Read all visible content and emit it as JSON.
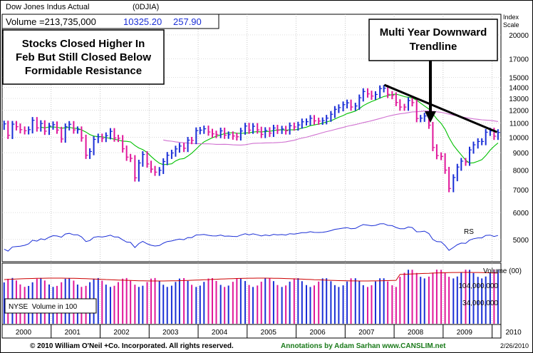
{
  "header": {
    "name_line": "Dow Jones Indus Actual",
    "symbol": "(0DJIA)",
    "volume_text": "Volume =213,735,000",
    "price": "10325.20",
    "change": "257.90"
  },
  "annotations": {
    "left_box": [
      "Stocks Closed Higher In",
      "Feb But Still Closed Below",
      "Formidable Resistance"
    ],
    "right_box": [
      "Multi Year Downward",
      "Trendline"
    ]
  },
  "right_axis": {
    "title_lines": [
      "Index",
      "Scale"
    ],
    "tick_values": [
      20000,
      17000,
      15000,
      14000,
      13000,
      12000,
      11000,
      10000,
      9000,
      8000,
      7000,
      6000,
      5000
    ]
  },
  "rs_label": "RS",
  "volume_panel": {
    "title": "Volume (00)",
    "ticks": [
      "104,000,000",
      "34,000,000"
    ],
    "legend": "NYSE  Volume in 100"
  },
  "x_axis": {
    "years": [
      "2000",
      "2001",
      "2002",
      "2003",
      "2004",
      "2005",
      "2006",
      "2007",
      "2008",
      "2009",
      "2010"
    ]
  },
  "footer": {
    "copyright": "© 2010 William O'Neil +Co. Incorporated. All rights reserved.",
    "annotations_credit": "Annotations by Adam Sarhan www.CANSLIM.net",
    "date": "2/26/2010"
  },
  "colors": {
    "up_bar": "#1a2ed6",
    "down_bar": "#e0179a",
    "ma_short": "#00c000",
    "ma_long": "#d070d0",
    "rs_line": "#1a2ed6",
    "volume_ma": "#cc0000",
    "text_blue": "#1a2ed6",
    "footer_green": "#1a7a1a"
  },
  "chart_data": {
    "type": "bar",
    "title": "Dow Jones Indus Actual (0DJIA)",
    "scale": "log",
    "ylim": [
      4300,
      23000
    ],
    "x_range": [
      2000.0,
      2010.18
    ],
    "monthly_close_x": [
      2000.04,
      2000.12,
      2000.21,
      2000.29,
      2000.37,
      2000.46,
      2000.54,
      2000.62,
      2000.71,
      2000.79,
      2000.87,
      2000.96,
      2001.04,
      2001.12,
      2001.21,
      2001.29,
      2001.37,
      2001.46,
      2001.54,
      2001.62,
      2001.71,
      2001.79,
      2001.87,
      2001.96,
      2002.04,
      2002.12,
      2002.21,
      2002.29,
      2002.37,
      2002.46,
      2002.54,
      2002.62,
      2002.71,
      2002.79,
      2002.87,
      2002.96,
      2003.04,
      2003.12,
      2003.21,
      2003.29,
      2003.37,
      2003.46,
      2003.54,
      2003.62,
      2003.71,
      2003.79,
      2003.87,
      2003.96,
      2004.04,
      2004.12,
      2004.21,
      2004.29,
      2004.37,
      2004.46,
      2004.54,
      2004.62,
      2004.71,
      2004.79,
      2004.87,
      2004.96,
      2005.04,
      2005.12,
      2005.21,
      2005.29,
      2005.37,
      2005.46,
      2005.54,
      2005.62,
      2005.71,
      2005.79,
      2005.87,
      2005.96,
      2006.04,
      2006.12,
      2006.21,
      2006.29,
      2006.37,
      2006.46,
      2006.54,
      2006.62,
      2006.71,
      2006.79,
      2006.87,
      2006.96,
      2007.04,
      2007.12,
      2007.21,
      2007.29,
      2007.37,
      2007.46,
      2007.54,
      2007.62,
      2007.71,
      2007.79,
      2007.87,
      2007.96,
      2008.04,
      2008.12,
      2008.21,
      2008.29,
      2008.37,
      2008.46,
      2008.54,
      2008.62,
      2008.71,
      2008.79,
      2008.87,
      2008.96,
      2009.04,
      2009.12,
      2009.21,
      2009.29,
      2009.37,
      2009.46,
      2009.54,
      2009.62,
      2009.71,
      2009.79,
      2009.87,
      2009.96,
      2010.04,
      2010.12
    ],
    "monthly_close": [
      10941,
      10128,
      10922,
      10734,
      10522,
      10448,
      10522,
      11215,
      10651,
      10971,
      10415,
      10787,
      10887,
      10495,
      9879,
      10735,
      10912,
      10502,
      10523,
      9950,
      8848,
      9075,
      9852,
      10022,
      9920,
      10106,
      10404,
      9946,
      9925,
      9243,
      8737,
      8664,
      7592,
      8397,
      8896,
      8342,
      8054,
      7891,
      7992,
      8480,
      8850,
      8985,
      9234,
      9416,
      9275,
      9801,
      9782,
      10454,
      10488,
      10584,
      10358,
      10226,
      10188,
      10435,
      10140,
      10174,
      10080,
      10027,
      10428,
      10783,
      10490,
      10766,
      10504,
      10193,
      10467,
      10275,
      10641,
      10482,
      10569,
      10440,
      10806,
      10718,
      10865,
      11100,
      11109,
      11367,
      11168,
      11150,
      11186,
      11381,
      11679,
      12081,
      12221,
      12463,
      12622,
      12269,
      12354,
      13063,
      13628,
      13409,
      13212,
      13358,
      13896,
      13930,
      13372,
      13265,
      12650,
      12266,
      12263,
      12820,
      12638,
      11350,
      11378,
      11544,
      10851,
      9325,
      8829,
      8776,
      8001,
      7063,
      7609,
      8168,
      8500,
      8447,
      9172,
      9496,
      9712,
      9713,
      10344,
      10428,
      10067,
      10325
    ],
    "trendline": {
      "from": {
        "x": 2007.8,
        "y": 14250
      },
      "to": {
        "x": 2010.1,
        "y": 10350
      }
    },
    "series": [
      {
        "name": "RS"
      },
      {
        "name": "Volume (00)"
      }
    ]
  }
}
